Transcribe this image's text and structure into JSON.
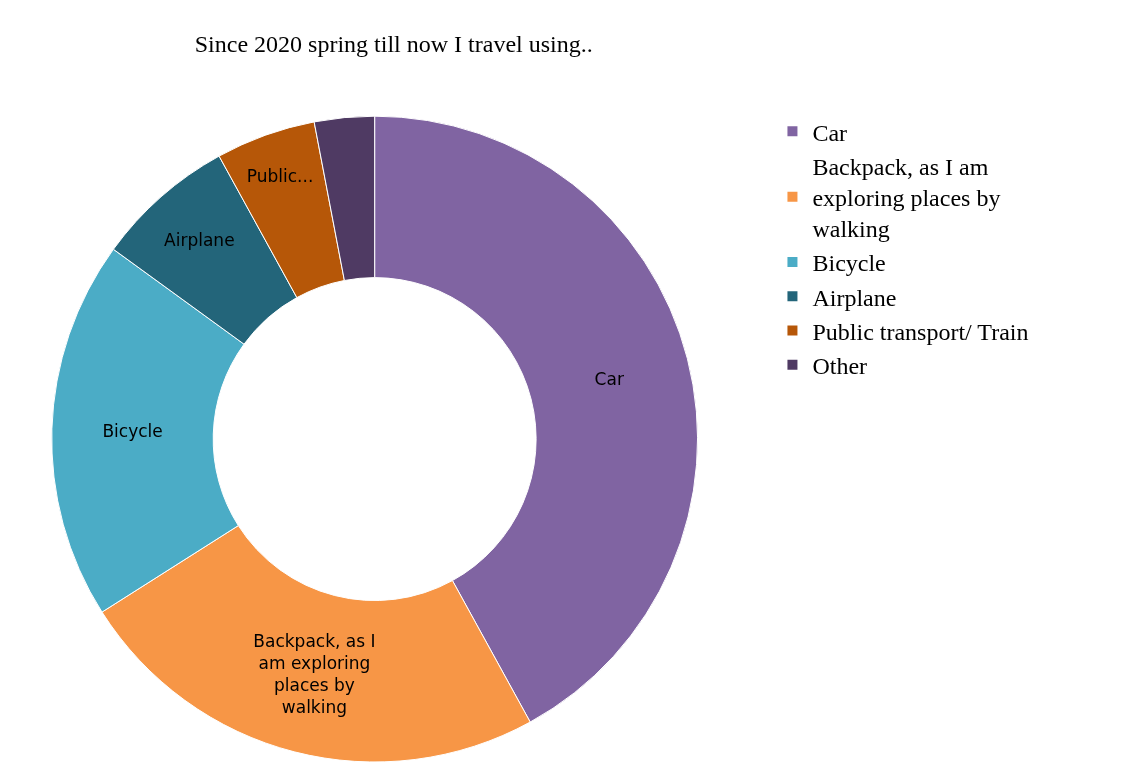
{
  "chart_data": {
    "type": "donut",
    "title": "Since 2020 spring till now I travel using..",
    "categories": [
      "Car",
      "Backpack, as I am\nexploring places by\nwalking",
      "Bicycle",
      "Airplane",
      "Public transport/ Train",
      "Other"
    ],
    "values": [
      42,
      24,
      19,
      7,
      5,
      3
    ],
    "colors": [
      "#8064a2",
      "#f79646",
      "#4bacc6",
      "#23657a",
      "#b65708",
      "#4f3a63"
    ],
    "value_labels": [
      "Car",
      "Backpack, as I\nam exploring\nplaces by\nwalking",
      "Bicycle",
      "Airplane",
      "Public...",
      null
    ],
    "legend": "right"
  }
}
